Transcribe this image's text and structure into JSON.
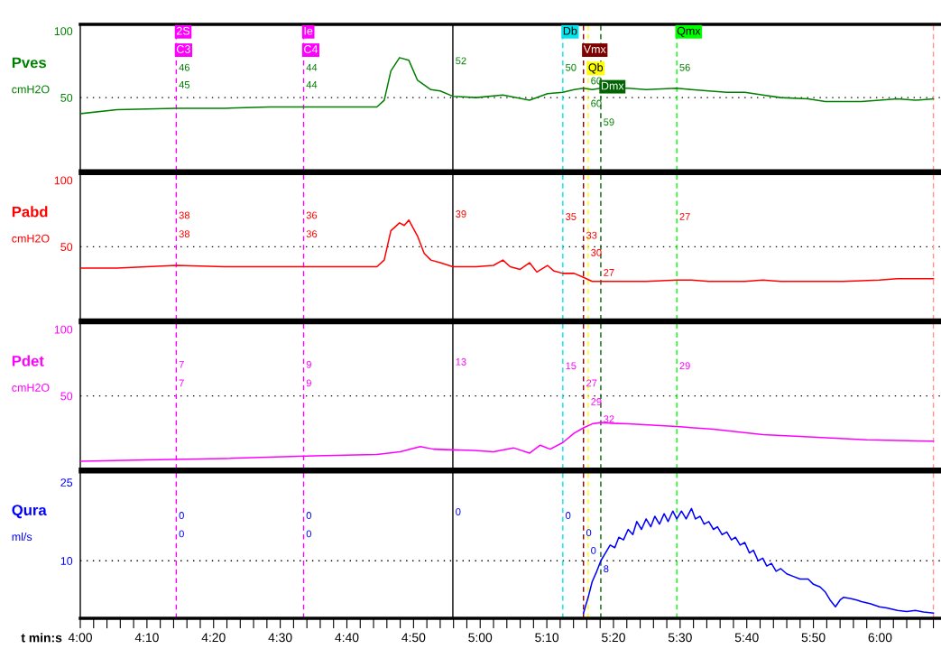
{
  "chart_data": [
    {
      "type": "line",
      "title": "Pves",
      "ylabel": "cmH2O",
      "xlim": [
        240,
        369
      ],
      "ylim": [
        -5,
        105
      ],
      "yticks": [
        50,
        100
      ],
      "tick_labels": "y",
      "series": [
        {
          "color": "#008000",
          "x": [
            240.1,
            245.5,
            254.4,
            261.7,
            268.4,
            275.1,
            284.5,
            285.6,
            286.6,
            287.9,
            289.3,
            290.6,
            292.6,
            294,
            295.9,
            299.4,
            303.4,
            307.4,
            310.1,
            312.4,
            314.1,
            315.5,
            316.8,
            318.1,
            319.5,
            322.2,
            324.9,
            329.5,
            331.7,
            334.3,
            337,
            339.7,
            342.4,
            345.1,
            349.2,
            351.8,
            354.5,
            357.2,
            359.9,
            362.6,
            365.3,
            368
          ],
          "values": [
            38,
            41,
            42,
            42,
            43,
            43,
            43,
            48,
            70,
            80,
            78,
            63,
            56,
            55,
            51,
            50,
            52,
            48,
            53,
            54,
            56,
            57,
            56,
            57,
            57,
            57,
            56,
            57,
            56,
            55,
            54,
            54,
            52,
            50,
            49,
            47,
            47,
            47,
            48,
            49,
            48,
            49
          ]
        }
      ],
      "ref_lines": [
        {
          "axis": "x",
          "value": 254.4,
          "label": "2S\nC3",
          "color": "#ff00ff",
          "line_style": "dashed"
        },
        {
          "axis": "x",
          "value": 273.5,
          "label": "Ie\nC4",
          "color": "#ff00ff",
          "line_style": "dashed"
        },
        {
          "axis": "x",
          "value": 295.9,
          "color": "#000000",
          "line_style": "solid"
        },
        {
          "axis": "x",
          "value": 312.4,
          "label": "Db",
          "color": "#00e5ee",
          "line_style": "dashed"
        },
        {
          "axis": "x",
          "value": 315.5,
          "label": "Vmx",
          "color": "#800000",
          "line_style": "dashed"
        },
        {
          "axis": "x",
          "value": 316.2,
          "label": "Qb",
          "color": "#ffff00",
          "line_style": "dashed"
        },
        {
          "axis": "x",
          "value": 318.1,
          "label": "Dmx",
          "color": "#006400",
          "line_style": "dashed"
        },
        {
          "axis": "x",
          "value": 329.5,
          "label": "Qmx",
          "color": "#00ff00",
          "line_style": "dashed"
        },
        {
          "axis": "x",
          "value": 368,
          "color": "#ff9090",
          "line_style": "dashed"
        },
        {
          "axis": "y",
          "value": 50,
          "color": "#000000",
          "line_style": "dotted"
        }
      ],
      "annotations": [
        {
          "text": "46",
          "x": 254.4,
          "y": 72
        },
        {
          "text": "45",
          "x": 254.4,
          "y": 59
        },
        {
          "text": "44",
          "x": 273.5,
          "y": 72
        },
        {
          "text": "44",
          "x": 273.5,
          "y": 59
        },
        {
          "text": "52",
          "x": 295.9,
          "y": 77
        },
        {
          "text": "50",
          "x": 312.4,
          "y": 72
        },
        {
          "text": "60",
          "x": 316.2,
          "y": 62
        },
        {
          "text": "60",
          "x": 316.2,
          "y": 45
        },
        {
          "text": "59",
          "x": 318.1,
          "y": 31
        },
        {
          "text": "56",
          "x": 329.5,
          "y": 72
        }
      ]
    },
    {
      "type": "line",
      "title": "Pabd",
      "ylabel": "cmH2O",
      "xlim": [
        240,
        369
      ],
      "ylim": [
        -5,
        105
      ],
      "yticks": [
        50,
        100
      ],
      "tick_labels": "y",
      "series": [
        {
          "color": "#ff0000",
          "x": [
            240.1,
            245.5,
            254.4,
            261.7,
            268.4,
            275.1,
            284.5,
            285.6,
            286.6,
            287.9,
            288.6,
            289.3,
            290.6,
            291.6,
            292.6,
            294,
            295.9,
            299.4,
            302,
            303.4,
            304.5,
            306,
            307.4,
            308.5,
            310.1,
            311,
            312.4,
            314.1,
            315.5,
            316.8,
            318.1,
            322.2,
            324.9,
            329.5,
            331.7,
            334.3,
            337,
            339.7,
            342.4,
            345.1,
            349.2,
            354.5,
            359.9,
            362.6,
            365.3,
            368
          ],
          "values": [
            34,
            34,
            36,
            35,
            35,
            35,
            35,
            40,
            62,
            68,
            66,
            70,
            58,
            45,
            40,
            38,
            35,
            35,
            36,
            40,
            35,
            33,
            38,
            31,
            36,
            32,
            30,
            30,
            27,
            24,
            24,
            24,
            24,
            25,
            25,
            24,
            24,
            24,
            25,
            24,
            24,
            24,
            25,
            26,
            26,
            26
          ]
        }
      ],
      "ref_lines": [
        {
          "axis": "x",
          "value": 254.4,
          "color": "#ff00ff",
          "line_style": "dashed"
        },
        {
          "axis": "x",
          "value": 273.5,
          "color": "#ff00ff",
          "line_style": "dashed"
        },
        {
          "axis": "x",
          "value": 295.9,
          "color": "#000000",
          "line_style": "solid"
        },
        {
          "axis": "x",
          "value": 312.4,
          "color": "#00e5ee",
          "line_style": "dashed"
        },
        {
          "axis": "x",
          "value": 315.5,
          "color": "#800000",
          "line_style": "dashed"
        },
        {
          "axis": "x",
          "value": 316.2,
          "color": "#ffff00",
          "line_style": "dashed"
        },
        {
          "axis": "x",
          "value": 318.1,
          "color": "#006400",
          "line_style": "dashed"
        },
        {
          "axis": "x",
          "value": 329.5,
          "color": "#00ff00",
          "line_style": "dashed"
        },
        {
          "axis": "x",
          "value": 368,
          "color": "#ff9090",
          "line_style": "dashed"
        },
        {
          "axis": "y",
          "value": 50,
          "color": "#000000",
          "line_style": "dotted"
        }
      ],
      "annotations": [
        {
          "text": "38",
          "x": 254.4,
          "y": 73
        },
        {
          "text": "38",
          "x": 254.4,
          "y": 59
        },
        {
          "text": "36",
          "x": 273.5,
          "y": 73
        },
        {
          "text": "36",
          "x": 273.5,
          "y": 59
        },
        {
          "text": "39",
          "x": 295.9,
          "y": 74
        },
        {
          "text": "35",
          "x": 312.4,
          "y": 72
        },
        {
          "text": "33",
          "x": 315.5,
          "y": 58
        },
        {
          "text": "30",
          "x": 316.2,
          "y": 45
        },
        {
          "text": "27",
          "x": 318.1,
          "y": 30
        },
        {
          "text": "27",
          "x": 329.5,
          "y": 72
        }
      ]
    },
    {
      "type": "line",
      "title": "Pdet",
      "ylabel": "cmH2O",
      "xlim": [
        240,
        369
      ],
      "ylim": [
        -5,
        105
      ],
      "yticks": [
        50,
        100
      ],
      "tick_labels": "y",
      "series": [
        {
          "color": "#ff00ff",
          "x": [
            240.1,
            250,
            261.7,
            275.1,
            284.5,
            288,
            291,
            293,
            295.9,
            299,
            302,
            305,
            307.4,
            309,
            310.5,
            312.4,
            314.1,
            315.5,
            316.8,
            318.1,
            319.5,
            322.2,
            329.5,
            335,
            342.4,
            350,
            358,
            368
          ],
          "values": [
            1,
            2,
            3,
            5,
            6,
            8,
            12,
            10,
            9.5,
            9,
            8,
            11,
            7,
            13,
            10,
            15,
            22,
            26,
            29,
            30,
            29.5,
            29,
            27,
            25,
            21,
            19,
            17,
            16
          ]
        }
      ],
      "ref_lines": [
        {
          "axis": "x",
          "value": 254.4,
          "color": "#ff00ff",
          "line_style": "dashed"
        },
        {
          "axis": "x",
          "value": 273.5,
          "color": "#ff00ff",
          "line_style": "dashed"
        },
        {
          "axis": "x",
          "value": 295.9,
          "color": "#000000",
          "line_style": "solid"
        },
        {
          "axis": "x",
          "value": 312.4,
          "color": "#00e5ee",
          "line_style": "dashed"
        },
        {
          "axis": "x",
          "value": 315.5,
          "color": "#800000",
          "line_style": "dashed"
        },
        {
          "axis": "x",
          "value": 316.2,
          "color": "#ffff00",
          "line_style": "dashed"
        },
        {
          "axis": "x",
          "value": 318.1,
          "color": "#006400",
          "line_style": "dashed"
        },
        {
          "axis": "x",
          "value": 329.5,
          "color": "#00ff00",
          "line_style": "dashed"
        },
        {
          "axis": "x",
          "value": 368,
          "color": "#ff9090",
          "line_style": "dashed"
        },
        {
          "axis": "y",
          "value": 50,
          "color": "#000000",
          "line_style": "dotted"
        }
      ],
      "annotations": [
        {
          "text": "7",
          "x": 254.4,
          "y": 73
        },
        {
          "text": "7",
          "x": 254.4,
          "y": 59
        },
        {
          "text": "9",
          "x": 273.5,
          "y": 73
        },
        {
          "text": "9",
          "x": 273.5,
          "y": 59
        },
        {
          "text": "13",
          "x": 295.9,
          "y": 75
        },
        {
          "text": "15",
          "x": 312.4,
          "y": 72
        },
        {
          "text": "27",
          "x": 315.5,
          "y": 59
        },
        {
          "text": "29",
          "x": 316.2,
          "y": 45
        },
        {
          "text": "32",
          "x": 318.1,
          "y": 32
        },
        {
          "text": "29",
          "x": 329.5,
          "y": 72
        }
      ]
    },
    {
      "type": "line",
      "title": "Qura",
      "ylabel": "ml/s",
      "xlabel": "t min:s",
      "xlim": [
        240,
        369
      ],
      "ylim": [
        -1,
        27
      ],
      "yticks": [
        10,
        25
      ],
      "xticks": [
        {
          "value": 240,
          "label": "4:00"
        },
        {
          "value": 242,
          "label": null
        },
        {
          "value": 244,
          "label": null
        },
        {
          "value": 246,
          "label": null
        },
        {
          "value": 248,
          "label": null
        },
        {
          "value": 250,
          "label": "4:10"
        },
        {
          "value": 252,
          "label": null
        },
        {
          "value": 254,
          "label": null
        },
        {
          "value": 256,
          "label": null
        },
        {
          "value": 258,
          "label": null
        },
        {
          "value": 260,
          "label": "4:20"
        },
        {
          "value": 262,
          "label": null
        },
        {
          "value": 264,
          "label": null
        },
        {
          "value": 266,
          "label": null
        },
        {
          "value": 268,
          "label": null
        },
        {
          "value": 270,
          "label": "4:30"
        },
        {
          "value": 272,
          "label": null
        },
        {
          "value": 274,
          "label": null
        },
        {
          "value": 276,
          "label": null
        },
        {
          "value": 278,
          "label": null
        },
        {
          "value": 280,
          "label": "4:40"
        },
        {
          "value": 282,
          "label": null
        },
        {
          "value": 284,
          "label": null
        },
        {
          "value": 286,
          "label": null
        },
        {
          "value": 288,
          "label": null
        },
        {
          "value": 290,
          "label": "4:50"
        },
        {
          "value": 292,
          "label": null
        },
        {
          "value": 294,
          "label": null
        },
        {
          "value": 296,
          "label": null
        },
        {
          "value": 298,
          "label": null
        },
        {
          "value": 300,
          "label": "5:00"
        },
        {
          "value": 302,
          "label": null
        },
        {
          "value": 304,
          "label": null
        },
        {
          "value": 306,
          "label": null
        },
        {
          "value": 308,
          "label": null
        },
        {
          "value": 310,
          "label": "5:10"
        },
        {
          "value": 312,
          "label": null
        },
        {
          "value": 314,
          "label": null
        },
        {
          "value": 316,
          "label": null
        },
        {
          "value": 318,
          "label": null
        },
        {
          "value": 320,
          "label": "5:20"
        },
        {
          "value": 322,
          "label": null
        },
        {
          "value": 324,
          "label": null
        },
        {
          "value": 326,
          "label": null
        },
        {
          "value": 328,
          "label": null
        },
        {
          "value": 330,
          "label": "5:30"
        },
        {
          "value": 332,
          "label": null
        },
        {
          "value": 334,
          "label": null
        },
        {
          "value": 336,
          "label": null
        },
        {
          "value": 338,
          "label": null
        },
        {
          "value": 340,
          "label": "5:40"
        },
        {
          "value": 342,
          "label": null
        },
        {
          "value": 344,
          "label": null
        },
        {
          "value": 346,
          "label": null
        },
        {
          "value": 348,
          "label": null
        },
        {
          "value": 350,
          "label": "5:50"
        },
        {
          "value": 352,
          "label": null
        },
        {
          "value": 354,
          "label": null
        },
        {
          "value": 356,
          "label": null
        },
        {
          "value": 358,
          "label": null
        },
        {
          "value": 360,
          "label": "6:00"
        },
        {
          "value": 362,
          "label": null
        },
        {
          "value": 364,
          "label": null
        },
        {
          "value": 366,
          "label": null
        },
        {
          "value": 368,
          "label": null
        }
      ],
      "series": [
        {
          "color": "#0000ff",
          "x": [
            315.5,
            316.2,
            316.8,
            317.5,
            318.1,
            318.8,
            319.5,
            320.2,
            320.8,
            321.5,
            322.2,
            322.9,
            323.5,
            324.2,
            324.9,
            325.6,
            326.2,
            326.9,
            327.6,
            328.2,
            328.9,
            329.5,
            330.2,
            330.9,
            331.7,
            332.3,
            333,
            333.6,
            334.3,
            335,
            335.6,
            336.3,
            337,
            337.7,
            338.3,
            339,
            339.7,
            340.4,
            341,
            341.7,
            342.4,
            343,
            343.7,
            344.4,
            345.1,
            346,
            347,
            348,
            349.2,
            350,
            351,
            351.8,
            352.5,
            353.3,
            354,
            354.5,
            355.5,
            356.5,
            357.2,
            358.5,
            359.9,
            361,
            362.6,
            364,
            365.3,
            366.5,
            368
          ],
          "values": [
            0,
            3,
            6,
            8,
            10,
            11.5,
            13,
            12.5,
            14.5,
            14,
            16,
            15,
            17.5,
            16,
            18,
            16.5,
            18.5,
            17,
            19,
            17.5,
            19.5,
            18,
            19.5,
            18,
            20,
            18,
            18.5,
            17,
            17.5,
            16,
            16.5,
            15,
            15.5,
            14,
            14.5,
            13,
            13.5,
            11.5,
            12,
            10,
            10.5,
            9,
            9.5,
            8,
            8.5,
            7.5,
            7,
            6.5,
            6.5,
            5.5,
            5,
            4,
            2.5,
            1.2,
            2.5,
            3,
            2.8,
            2.5,
            2.2,
            1.8,
            1.2,
            1,
            0.5,
            0.3,
            0.5,
            0.2,
            0
          ]
        }
      ],
      "ref_lines": [
        {
          "axis": "x",
          "value": 254.4,
          "color": "#ff00ff",
          "line_style": "dashed"
        },
        {
          "axis": "x",
          "value": 273.5,
          "color": "#ff00ff",
          "line_style": "dashed"
        },
        {
          "axis": "x",
          "value": 295.9,
          "color": "#000000",
          "line_style": "solid"
        },
        {
          "axis": "x",
          "value": 312.4,
          "color": "#00e5ee",
          "line_style": "dashed"
        },
        {
          "axis": "x",
          "value": 315.5,
          "color": "#800000",
          "line_style": "dashed"
        },
        {
          "axis": "x",
          "value": 316.2,
          "color": "#ffff00",
          "line_style": "dashed"
        },
        {
          "axis": "x",
          "value": 318.1,
          "color": "#006400",
          "line_style": "dashed"
        },
        {
          "axis": "x",
          "value": 329.5,
          "color": "#00ff00",
          "line_style": "dashed"
        },
        {
          "axis": "x",
          "value": 368,
          "color": "#ff9090",
          "line_style": "dashed"
        },
        {
          "axis": "y",
          "value": 10,
          "color": "#000000",
          "line_style": "dotted"
        }
      ],
      "annotations": [
        {
          "text": "0",
          "x": 254.4,
          "y": 18.5
        },
        {
          "text": "0",
          "x": 254.4,
          "y": 15
        },
        {
          "text": "0",
          "x": 273.5,
          "y": 18.5
        },
        {
          "text": "0",
          "x": 273.5,
          "y": 15
        },
        {
          "text": "0",
          "x": 295.9,
          "y": 19.2
        },
        {
          "text": "0",
          "x": 312.4,
          "y": 18.5
        },
        {
          "text": "0",
          "x": 315.5,
          "y": 15.2
        },
        {
          "text": "0",
          "x": 316.2,
          "y": 11.8
        },
        {
          "text": "8",
          "x": 318.1,
          "y": 8.3
        }
      ]
    }
  ]
}
